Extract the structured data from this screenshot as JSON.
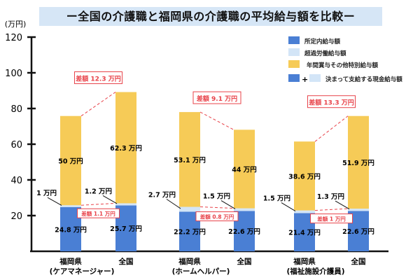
{
  "chart_data": {
    "type": "bar",
    "stacked": true,
    "title": "ー全国の介護職と福岡県の介護職の平均給与額を比較ー",
    "ylabel": "(万円)",
    "ylim": [
      0,
      120
    ],
    "yticks": [
      20,
      40,
      60,
      80,
      100,
      120
    ],
    "grid": false,
    "legend_position": "top-right",
    "unit_suffix": " 万円",
    "colors": {
      "regular": "#4a7fd4",
      "overtime": "#d3e5f7",
      "bonus": "#f6cb57",
      "diff": "#e8434a"
    },
    "legend": [
      {
        "label": "所定内給与額",
        "swatches": [
          "regular"
        ]
      },
      {
        "label": "超過労働給与額",
        "swatches": [
          "overtime"
        ]
      },
      {
        "label": "年間賞与その他特別給与額",
        "swatches": [
          "bonus"
        ]
      },
      {
        "label": "決まって支給する現金給与額",
        "swatches": [
          "regular",
          "overtime"
        ],
        "joiner": "+"
      }
    ],
    "groups": [
      {
        "label": "(ケアマネージャー)",
        "total_diff": "差額 12.3 万円",
        "regular_diff": "差額 1.1 万円",
        "bars": [
          {
            "label": "福岡県",
            "regular": 24.8,
            "overtime": 1,
            "bonus": 50,
            "labels": [
              "24.8 万円",
              "1 万円",
              "50 万円"
            ]
          },
          {
            "label": "全国",
            "regular": 25.7,
            "overtime": 1.2,
            "bonus": 62.3,
            "labels": [
              "25.7 万円",
              "1.2 万円",
              "62.3 万円"
            ]
          }
        ]
      },
      {
        "label": "(ホームヘルパー)",
        "total_diff": "差額 9.1 万円",
        "regular_diff": "差額 0.8 万円",
        "bars": [
          {
            "label": "福岡県",
            "regular": 22.2,
            "overtime": 2.7,
            "bonus": 53.1,
            "labels": [
              "22.2 万円",
              "2.7 万円",
              "53.1 万円"
            ]
          },
          {
            "label": "全国",
            "regular": 22.6,
            "overtime": 1.5,
            "bonus": 44,
            "labels": [
              "22.6 万円",
              "1.5 万円",
              "44 万円"
            ]
          }
        ]
      },
      {
        "label": "(福祉施設介護員)",
        "total_diff": "差額 13.3 万円",
        "regular_diff": "差額 1 万円",
        "bars": [
          {
            "label": "福岡県",
            "regular": 21.4,
            "overtime": 1.5,
            "bonus": 38.6,
            "labels": [
              "21.4 万円",
              "1.5 万円",
              "38.6 万円"
            ]
          },
          {
            "label": "全国",
            "regular": 22.6,
            "overtime": 1.3,
            "bonus": 51.9,
            "labels": [
              "22.6 万円",
              "1.3 万円",
              "51.9 万円"
            ]
          }
        ]
      }
    ]
  }
}
